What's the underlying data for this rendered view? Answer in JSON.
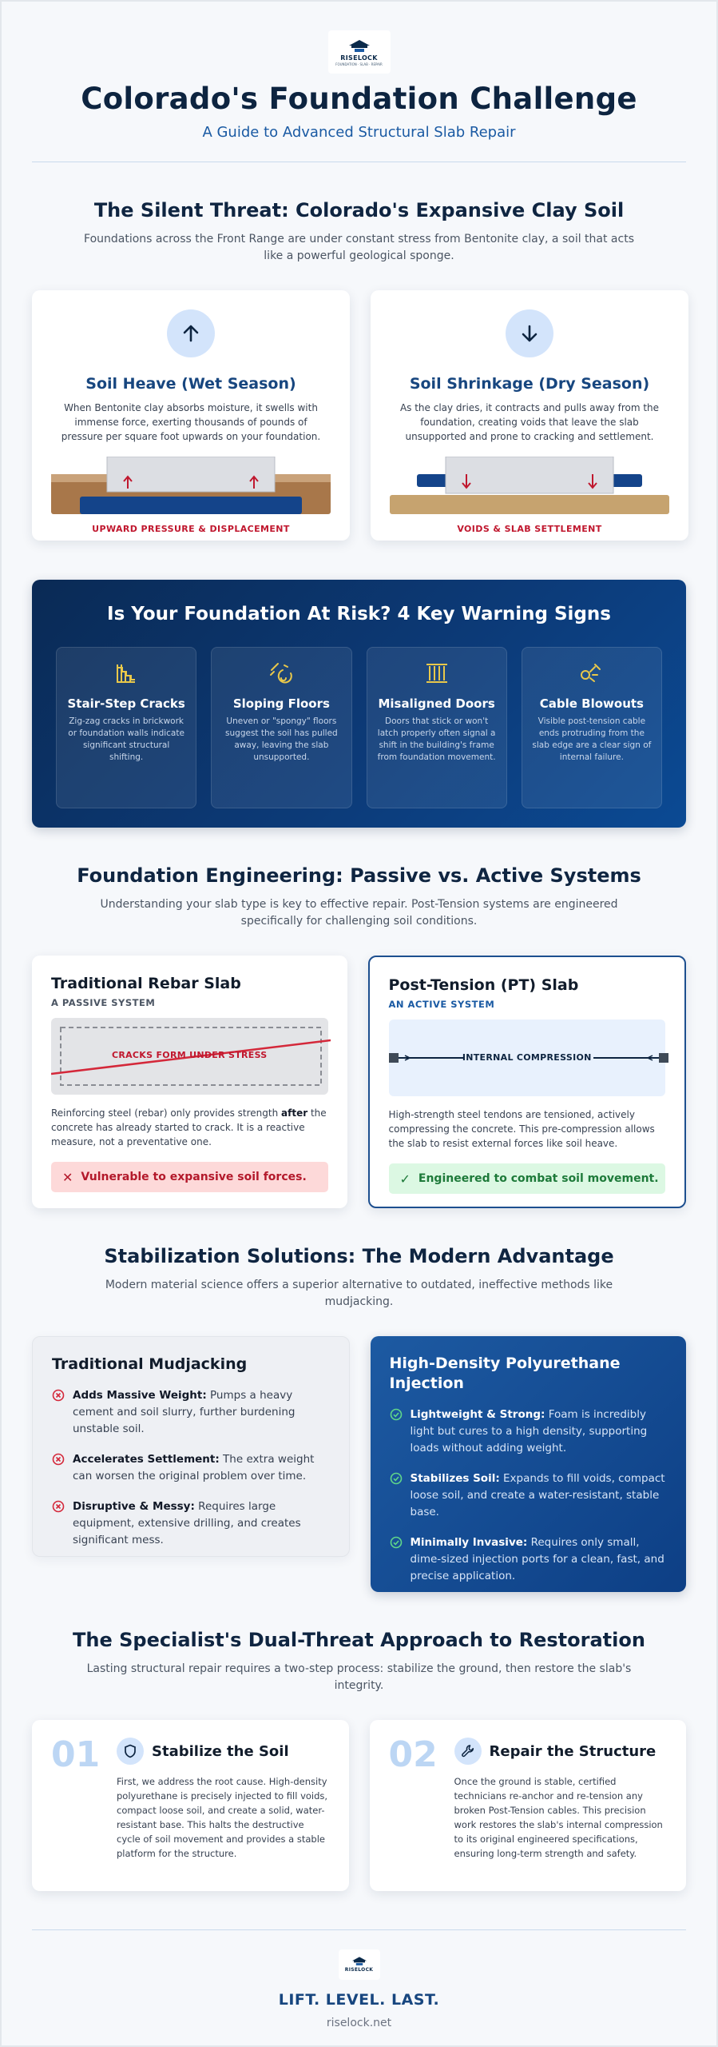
{
  "brand": {
    "logo_text": "RISELOCK",
    "logo_sub": "FOUNDATION · SLAB · REPAIR"
  },
  "header": {
    "title": "Colorado's Foundation Challenge",
    "subtitle": "A Guide to Advanced Structural Slab Repair"
  },
  "threat": {
    "title": "The Silent Threat: Colorado's Expansive Clay Soil",
    "desc": "Foundations across the Front Range are under constant stress from Bentonite clay, a soil that acts like a powerful geological sponge.",
    "heave": {
      "title": "Soil Heave (Wet Season)",
      "desc": "When Bentonite clay absorbs moisture, it swells with immense force, exerting thousands of pounds of pressure per square foot upwards on your foundation.",
      "caption": "UPWARD PRESSURE & DISPLACEMENT"
    },
    "shrink": {
      "title": "Soil Shrinkage (Dry Season)",
      "desc": "As the clay dries, it contracts and pulls away from the foundation, creating voids that leave the slab unsupported and prone to cracking and settlement.",
      "caption": "VOIDS & SLAB SETTLEMENT"
    }
  },
  "risk": {
    "title": "Is Your Foundation At Risk? 4 Key Warning Signs",
    "signs": [
      {
        "title": "Stair-Step Cracks",
        "desc": "Zig-zag cracks in brickwork or foundation walls indicate significant structural shifting."
      },
      {
        "title": "Sloping Floors",
        "desc": "Uneven or \"spongy\" floors suggest the soil has pulled away, leaving the slab unsupported."
      },
      {
        "title": "Misaligned Doors",
        "desc": "Doors that stick or won't latch properly often signal a shift in the building's frame from foundation movement."
      },
      {
        "title": "Cable Blowouts",
        "desc": "Visible post-tension cable ends protruding from the slab edge are a clear sign of internal failure."
      }
    ]
  },
  "engineering": {
    "title": "Foundation Engineering: Passive vs. Active Systems",
    "desc": "Understanding your slab type is key to effective repair. Post-Tension systems are engineered specifically for challenging soil conditions.",
    "rebar": {
      "title": "Traditional Rebar Slab",
      "sub": "A PASSIVE SYSTEM",
      "visual_label": "CRACKS FORM UNDER STRESS",
      "body_1": "Reinforcing steel (rebar) only provides strength ",
      "body_bold": "after",
      "body_2": " the concrete has already started to crack. It is a reactive measure, not a preventative one.",
      "verdict": "Vulnerable to expansive soil forces."
    },
    "pt": {
      "title": "Post-Tension (PT) Slab",
      "sub": "AN ACTIVE SYSTEM",
      "visual_label": "INTERNAL COMPRESSION",
      "body": "High-strength steel tendons are tensioned, actively compressing the concrete. This pre-compression allows the slab to resist external forces like soil heave.",
      "verdict": "Engineered to combat soil movement."
    }
  },
  "stabilization": {
    "title": "Stabilization Solutions: The Modern Advantage",
    "desc": "Modern material science offers a superior alternative to outdated, ineffective methods like mudjacking.",
    "mud": {
      "title": "Traditional Mudjacking",
      "items": [
        {
          "bold": "Adds Massive Weight:",
          "text": " Pumps a heavy cement and soil slurry, further burdening unstable soil."
        },
        {
          "bold": "Accelerates Settlement:",
          "text": " The extra weight can worsen the original problem over time."
        },
        {
          "bold": "Disruptive & Messy:",
          "text": " Requires large equipment, extensive drilling, and creates significant mess."
        }
      ]
    },
    "poly": {
      "title": "High-Density Polyurethane Injection",
      "items": [
        {
          "bold": "Lightweight & Strong:",
          "text": " Foam is incredibly light but cures to a high density, supporting loads without adding weight."
        },
        {
          "bold": "Stabilizes Soil:",
          "text": " Expands to fill voids, compact loose soil, and create a water-resistant, stable base."
        },
        {
          "bold": "Minimally Invasive:",
          "text": " Requires only small, dime-sized injection ports for a clean, fast, and precise application."
        }
      ]
    }
  },
  "approach": {
    "title": "The Specialist's Dual-Threat Approach to Restoration",
    "desc": "Lasting structural repair requires a two-step process: stabilize the ground, then restore the slab's integrity.",
    "steps": [
      {
        "num": "01",
        "title": "Stabilize the Soil",
        "desc": "First, we address the root cause. High-density polyurethane is precisely injected to fill voids, compact loose soil, and create a solid, water-resistant base. This halts the destructive cycle of soil movement and provides a stable platform for the structure."
      },
      {
        "num": "02",
        "title": "Repair the Structure",
        "desc": "Once the ground is stable, certified technicians re-anchor and re-tension any broken Post-Tension cables. This precision work restores the slab's internal compression to its original engineered specifications, ensuring long-term strength and safety."
      }
    ]
  },
  "footer": {
    "slogan": "LIFT. LEVEL. LAST.",
    "site": "riselock.net"
  },
  "colors": {
    "navy": "#0d2440",
    "accent": "#1a5aa3",
    "alert": "#c0172e",
    "success": "#1e7a3a"
  }
}
